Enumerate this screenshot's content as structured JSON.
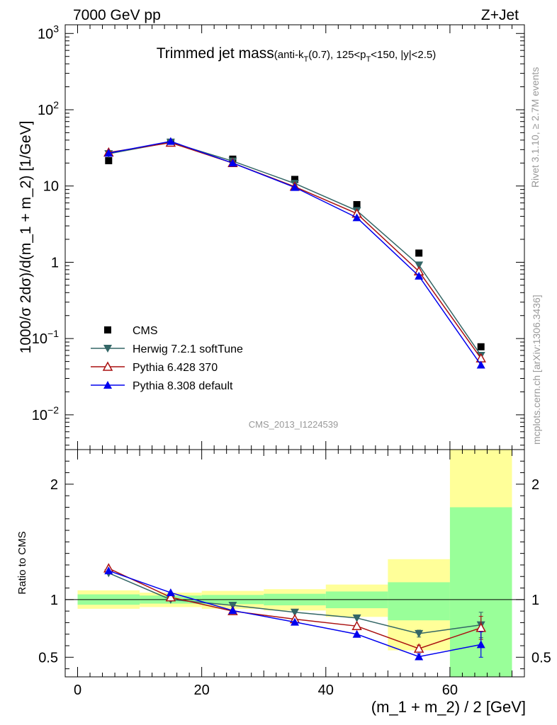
{
  "header": {
    "left": "7000 GeV pp",
    "right": "Z+Jet"
  },
  "title": {
    "main": "Trimmed jet mass",
    "detail_pre": "(anti-k",
    "detail_sub1": "T",
    "detail_mid": "(0.7), 125<p",
    "detail_sub2": "T",
    "detail_post": "<150, |y|<2.5)"
  },
  "side_labels": {
    "rivet": "Rivet 3.1.10, ≥ 2.7M events",
    "mcplots": "mcplots.cern.ch [arXiv:1306.3436]"
  },
  "watermark": "CMS_2013_I1224539",
  "colors": {
    "cms": "#000000",
    "herwig": "#336666",
    "pythia6": "#aa1111",
    "pythia8": "#0000ee",
    "band_yellow": "#ffff99",
    "band_green": "#99ff99"
  },
  "chart_data": [
    {
      "type": "scatter",
      "title": "Trimmed jet mass(anti-kT(0.7), 125<pT<150, |y|<2.5)",
      "ylabel": "1000/σ 2dσ)/d(m_1 + m_2) [1/GeV]",
      "yscale": "log",
      "ylim": [
        0.0035,
        1300
      ],
      "xlim": [
        -2,
        72
      ],
      "y_ticks": [
        {
          "value": 1000,
          "base": "10",
          "exp": "3"
        },
        {
          "value": 100,
          "base": "10",
          "exp": "2"
        },
        {
          "value": 10,
          "base": "10",
          "exp": ""
        },
        {
          "value": 1,
          "base": "1",
          "exp": ""
        },
        {
          "value": 0.1,
          "base": "10",
          "exp": "−1"
        },
        {
          "value": 0.01,
          "base": "10",
          "exp": "−2"
        }
      ],
      "x": [
        5,
        15,
        25,
        35,
        45,
        55,
        65
      ],
      "series": [
        {
          "name": "CMS",
          "marker": "square",
          "values": [
            21.5,
            37.5,
            22.5,
            12.2,
            5.7,
            1.32,
            0.078
          ]
        },
        {
          "name": "Herwig 7.2.1 softTune",
          "marker": "triangle-down",
          "values": [
            26.5,
            37.5,
            21.2,
            10.8,
            4.75,
            0.92,
            0.06
          ]
        },
        {
          "name": "Pythia 6.428 370",
          "marker": "triangle-open",
          "values": [
            27.5,
            37.0,
            20.0,
            9.8,
            4.35,
            0.76,
            0.055
          ]
        },
        {
          "name": "Pythia 8.308 default",
          "marker": "triangle-up",
          "values": [
            27.0,
            38.5,
            20.0,
            9.6,
            3.85,
            0.66,
            0.045
          ]
        }
      ],
      "legend_placement": "bottom-left"
    },
    {
      "type": "scatter",
      "ylabel": "Ratio to CMS",
      "xlabel": "(m_1 + m_2) / 2 [GeV]",
      "ylim": [
        0.33,
        2.3
      ],
      "xlim": [
        -2,
        72
      ],
      "x_ticks": [
        0,
        20,
        40,
        60
      ],
      "y_ticks": [
        {
          "value": 2,
          "label": "2"
        },
        {
          "value": 1,
          "label": "1"
        },
        {
          "value": 0.5,
          "label": "0.5"
        }
      ],
      "bands": [
        {
          "x0": 0,
          "x1": 10,
          "yellow": [
            0.92,
            1.08
          ],
          "green": [
            0.955,
            1.045
          ]
        },
        {
          "x0": 10,
          "x1": 20,
          "yellow": [
            0.935,
            1.06
          ],
          "green": [
            0.965,
            1.035
          ]
        },
        {
          "x0": 20,
          "x1": 30,
          "yellow": [
            0.92,
            1.075
          ],
          "green": [
            0.96,
            1.04
          ]
        },
        {
          "x0": 30,
          "x1": 40,
          "yellow": [
            0.905,
            1.09
          ],
          "green": [
            0.95,
            1.05
          ]
        },
        {
          "x0": 40,
          "x1": 50,
          "yellow": [
            0.85,
            1.13
          ],
          "green": [
            0.925,
            1.07
          ]
        },
        {
          "x0": 50,
          "x1": 60,
          "yellow": [
            0.56,
            1.35
          ],
          "green": [
            0.82,
            1.15
          ]
        },
        {
          "x0": 60,
          "x1": 70,
          "yellow": [
            0.33,
            2.3
          ],
          "green": [
            0.33,
            1.8
          ]
        }
      ],
      "x": [
        5,
        15,
        25,
        35,
        45,
        55,
        65
      ],
      "series": [
        {
          "name": "Herwig 7.2.1 softTune",
          "values": [
            1.23,
            1.0,
            0.95,
            0.89,
            0.84,
            0.705,
            0.78
          ],
          "errors": [
            0,
            0,
            0,
            0,
            0,
            0.03,
            0.11
          ]
        },
        {
          "name": "Pythia 6.428 370",
          "values": [
            1.27,
            1.02,
            0.9,
            0.83,
            0.77,
            0.575,
            0.755
          ],
          "errors": [
            0,
            0,
            0,
            0,
            0,
            0.03,
            0.1
          ]
        },
        {
          "name": "Pythia 8.308 default",
          "values": [
            1.25,
            1.06,
            0.905,
            0.805,
            0.7,
            0.505,
            0.61
          ],
          "errors": [
            0,
            0,
            0,
            0,
            0,
            0.025,
            0.11
          ]
        }
      ]
    }
  ]
}
